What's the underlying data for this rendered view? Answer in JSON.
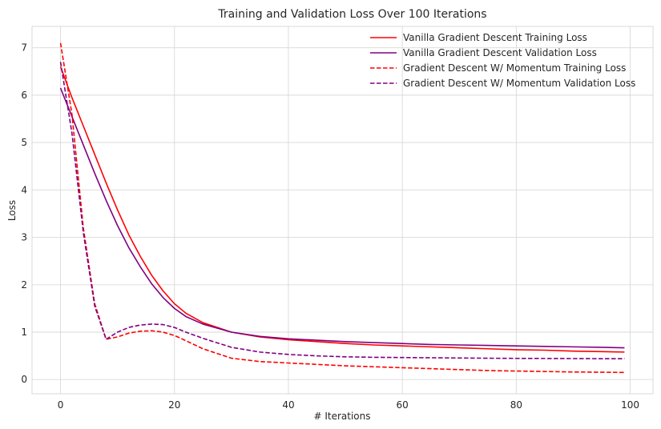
{
  "chart_data": {
    "type": "line",
    "title": "Training and Validation Loss Over 100 Iterations",
    "xlabel": "# Iterations",
    "ylabel": "Loss",
    "xlim": [
      -5,
      104
    ],
    "ylim": [
      -0.3,
      7.45
    ],
    "xticks": [
      0,
      20,
      40,
      60,
      80,
      100
    ],
    "yticks": [
      0,
      1,
      2,
      3,
      4,
      5,
      6,
      7
    ],
    "grid": true,
    "legend_position": "top-right",
    "x": [
      0,
      2,
      4,
      6,
      8,
      10,
      12,
      14,
      16,
      18,
      20,
      22,
      25,
      30,
      35,
      40,
      45,
      50,
      55,
      60,
      65,
      70,
      75,
      80,
      85,
      90,
      95,
      99
    ],
    "series": [
      {
        "name": "Vanilla Gradient Descent Training Loss",
        "color": "#ff0000",
        "style": "solid",
        "values": [
          6.6,
          5.95,
          5.35,
          4.75,
          4.15,
          3.58,
          3.05,
          2.6,
          2.2,
          1.87,
          1.6,
          1.4,
          1.2,
          1.0,
          0.9,
          0.84,
          0.8,
          0.76,
          0.73,
          0.71,
          0.69,
          0.67,
          0.65,
          0.63,
          0.62,
          0.6,
          0.59,
          0.58
        ]
      },
      {
        "name": "Vanilla Gradient Descent Validation Loss",
        "color": "#800080",
        "style": "solid",
        "values": [
          6.15,
          5.55,
          4.95,
          4.35,
          3.78,
          3.25,
          2.78,
          2.38,
          2.02,
          1.73,
          1.5,
          1.33,
          1.17,
          1.0,
          0.91,
          0.86,
          0.83,
          0.8,
          0.78,
          0.76,
          0.74,
          0.73,
          0.72,
          0.71,
          0.7,
          0.69,
          0.68,
          0.67
        ]
      },
      {
        "name": "Gradient Descent W/ Momentum Training Loss",
        "color": "#ff0000",
        "style": "dashed",
        "values": [
          7.1,
          5.6,
          3.2,
          1.6,
          0.85,
          0.9,
          0.98,
          1.02,
          1.03,
          1.0,
          0.93,
          0.82,
          0.65,
          0.45,
          0.38,
          0.35,
          0.32,
          0.29,
          0.27,
          0.25,
          0.23,
          0.21,
          0.19,
          0.18,
          0.17,
          0.16,
          0.155,
          0.15
        ]
      },
      {
        "name": "Gradient Descent W/ Momentum Validation Loss",
        "color": "#800080",
        "style": "dashed",
        "values": [
          6.7,
          5.2,
          3.1,
          1.55,
          0.85,
          1.0,
          1.1,
          1.15,
          1.17,
          1.16,
          1.1,
          1.0,
          0.87,
          0.68,
          0.58,
          0.53,
          0.5,
          0.48,
          0.47,
          0.465,
          0.46,
          0.455,
          0.45,
          0.447,
          0.445,
          0.443,
          0.44,
          0.44
        ]
      }
    ]
  }
}
